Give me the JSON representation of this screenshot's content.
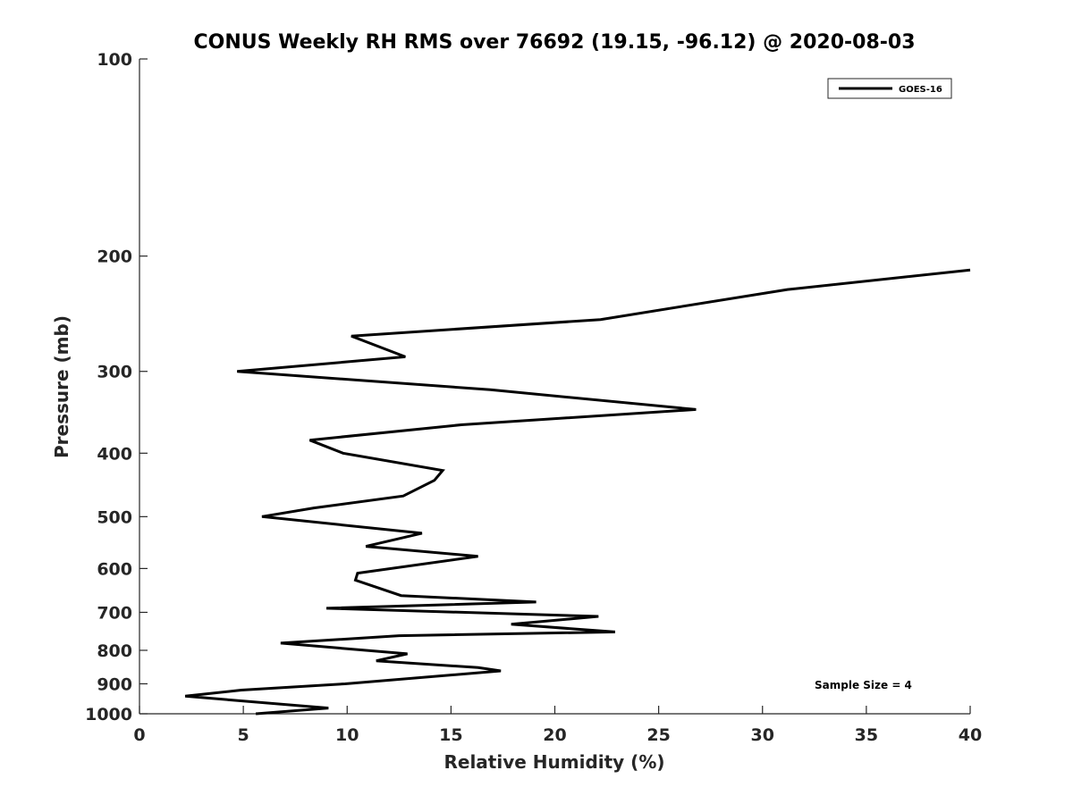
{
  "chart_data": {
    "type": "line",
    "title": "CONUS Weekly RH RMS over 76692 (19.15, -96.12) @ 2020-08-03",
    "xlabel": "Relative Humidity (%)",
    "ylabel": "Pressure (mb)",
    "xlim": [
      0,
      40
    ],
    "ylim": [
      100,
      1000
    ],
    "y_scale": "log",
    "y_reversed": true,
    "x_ticks": [
      0,
      5,
      10,
      15,
      20,
      25,
      30,
      35,
      40
    ],
    "y_ticks": [
      100,
      200,
      300,
      400,
      500,
      600,
      700,
      800,
      900,
      1000
    ],
    "grid": false,
    "legend_position": "top-right",
    "annotation": "Sample Size = 4",
    "series": [
      {
        "name": "GOES-16",
        "color": "#000000",
        "points": [
          [
            40.0,
            210
          ],
          [
            31.2,
            225
          ],
          [
            22.2,
            250
          ],
          [
            10.2,
            265
          ],
          [
            12.8,
            285
          ],
          [
            4.7,
            300
          ],
          [
            16.9,
            320
          ],
          [
            26.8,
            343
          ],
          [
            15.5,
            362
          ],
          [
            8.2,
            382
          ],
          [
            9.8,
            400
          ],
          [
            14.6,
            425
          ],
          [
            14.2,
            440
          ],
          [
            12.7,
            465
          ],
          [
            8.4,
            485
          ],
          [
            5.9,
            500
          ],
          [
            13.6,
            530
          ],
          [
            10.9,
            555
          ],
          [
            16.3,
            575
          ],
          [
            10.5,
            610
          ],
          [
            10.4,
            625
          ],
          [
            12.6,
            660
          ],
          [
            19.1,
            675
          ],
          [
            9.0,
            690
          ],
          [
            22.1,
            710
          ],
          [
            17.9,
            730
          ],
          [
            22.9,
            750
          ],
          [
            12.5,
            760
          ],
          [
            6.8,
            780
          ],
          [
            12.9,
            810
          ],
          [
            11.4,
            830
          ],
          [
            16.3,
            850
          ],
          [
            17.4,
            860
          ],
          [
            9.9,
            900
          ],
          [
            4.9,
            920
          ],
          [
            2.2,
            940
          ],
          [
            9.1,
            980
          ],
          [
            5.6,
            1000
          ]
        ]
      }
    ]
  }
}
